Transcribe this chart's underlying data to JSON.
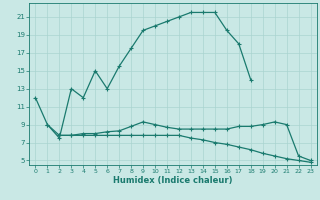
{
  "xlabel": "Humidex (Indice chaleur)",
  "background_color": "#c9e8e5",
  "grid_color": "#aad4d0",
  "line_color": "#1a7a6e",
  "xlim": [
    -0.5,
    23.5
  ],
  "ylim": [
    4.5,
    22.5
  ],
  "xticks": [
    0,
    1,
    2,
    3,
    4,
    5,
    6,
    7,
    8,
    9,
    10,
    11,
    12,
    13,
    14,
    15,
    16,
    17,
    18,
    19,
    20,
    21,
    22,
    23
  ],
  "yticks": [
    5,
    7,
    9,
    11,
    13,
    15,
    17,
    19,
    21
  ],
  "line1_x": [
    0,
    1,
    2,
    3,
    4,
    5,
    6,
    7,
    8,
    9,
    10,
    11,
    12,
    13,
    14,
    15,
    16,
    17,
    18
  ],
  "line1_y": [
    12,
    9,
    7.5,
    13.0,
    12.0,
    15.0,
    13.0,
    15.5,
    17.5,
    19.5,
    20.0,
    20.5,
    21.0,
    21.5,
    21.5,
    21.5,
    19.5,
    18.0,
    14.0
  ],
  "line2_x": [
    1,
    2,
    3,
    4,
    5,
    6,
    7,
    8,
    9,
    10,
    11,
    12,
    13,
    14,
    15,
    16,
    17,
    18,
    19,
    20,
    21,
    22,
    23
  ],
  "line2_y": [
    9.0,
    7.8,
    7.8,
    8.0,
    8.0,
    8.2,
    8.3,
    8.8,
    9.3,
    9.0,
    8.7,
    8.5,
    8.5,
    8.5,
    8.5,
    8.5,
    8.8,
    8.8,
    9.0,
    9.3,
    9.0,
    5.5,
    5.0
  ],
  "line3_x": [
    2,
    3,
    4,
    5,
    6,
    7,
    8,
    9,
    10,
    11,
    12,
    13,
    14,
    15,
    16,
    17,
    18,
    19,
    20,
    21,
    22,
    23
  ],
  "line3_y": [
    7.8,
    7.8,
    7.8,
    7.8,
    7.8,
    7.8,
    7.8,
    7.8,
    7.8,
    7.8,
    7.8,
    7.5,
    7.3,
    7.0,
    6.8,
    6.5,
    6.2,
    5.8,
    5.5,
    5.2,
    5.0,
    4.8
  ]
}
